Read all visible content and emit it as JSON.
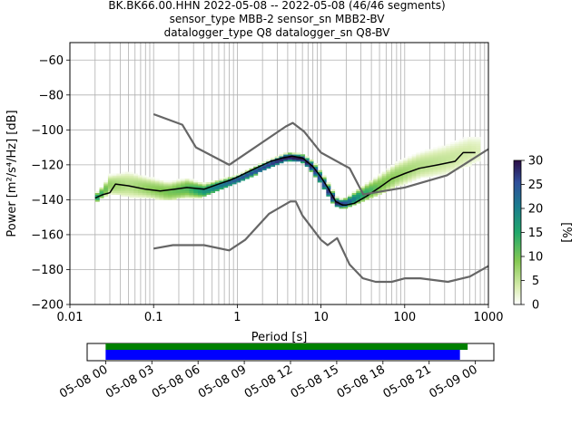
{
  "title": {
    "line1": "BK.BK66.00.HHN   2022-05-08 -- 2022-05-08  (46/46 segments)",
    "line2": "sensor_type MBB-2 sensor_sn MBB2-BV",
    "line3": "datalogger_type Q8 datalogger_sn Q8-BV"
  },
  "colors": {
    "model_curve": "#666666",
    "mode_line": "#000000",
    "grid": "#b0b0b0",
    "coverage_data": "#008000",
    "coverage_gaps": "#0000ff"
  },
  "chart_data": [
    {
      "type": "heatmap",
      "name": "ppsd",
      "xlabel": "Period [s]",
      "ylabel": "Power [m²/s⁴/Hz] [dB]",
      "xscale": "log",
      "xlim": [
        0.01,
        1000
      ],
      "ylim": [
        -200,
        -50
      ],
      "x_ticks": [
        {
          "v": 0.01,
          "label": "0.01"
        },
        {
          "v": 0.1,
          "label": "0.1"
        },
        {
          "v": 1,
          "label": "1"
        },
        {
          "v": 10,
          "label": "10"
        },
        {
          "v": 100,
          "label": "100"
        },
        {
          "v": 1000,
          "label": "1000"
        }
      ],
      "y_ticks": [
        -60,
        -80,
        -100,
        -120,
        -140,
        -160,
        -180,
        -200
      ],
      "grid": true,
      "colorbar": {
        "label": "[%]",
        "range": [
          0,
          30
        ],
        "ticks": [
          0,
          5,
          10,
          15,
          20,
          25,
          30
        ]
      },
      "density_band": [
        {
          "period": 0.02,
          "low": -142,
          "high": -137,
          "max_pct": 18
        },
        {
          "period": 0.025,
          "low": -139,
          "high": -132,
          "max_pct": 12
        },
        {
          "period": 0.03,
          "low": -137,
          "high": -126,
          "max_pct": 8
        },
        {
          "period": 0.05,
          "low": -139,
          "high": -124,
          "max_pct": 6
        },
        {
          "period": 0.08,
          "low": -139,
          "high": -127,
          "max_pct": 8
        },
        {
          "period": 0.15,
          "low": -141,
          "high": -130,
          "max_pct": 10
        },
        {
          "period": 0.25,
          "low": -139,
          "high": -128,
          "max_pct": 12
        },
        {
          "period": 0.4,
          "low": -139,
          "high": -131,
          "max_pct": 18
        },
        {
          "period": 0.7,
          "low": -134,
          "high": -128,
          "max_pct": 22
        },
        {
          "period": 1.0,
          "low": -131,
          "high": -126,
          "max_pct": 25
        },
        {
          "period": 1.5,
          "low": -127,
          "high": -122,
          "max_pct": 25
        },
        {
          "period": 2.5,
          "low": -122,
          "high": -117,
          "max_pct": 27
        },
        {
          "period": 4.0,
          "low": -118,
          "high": -113,
          "max_pct": 30
        },
        {
          "period": 6.0,
          "low": -119,
          "high": -114,
          "max_pct": 30
        },
        {
          "period": 8.0,
          "low": -125,
          "high": -118,
          "max_pct": 28
        },
        {
          "period": 10.0,
          "low": -132,
          "high": -124,
          "max_pct": 25
        },
        {
          "period": 13.0,
          "low": -141,
          "high": -133,
          "max_pct": 28
        },
        {
          "period": 16.0,
          "low": -145,
          "high": -140,
          "max_pct": 30
        },
        {
          "period": 20.0,
          "low": -145,
          "high": -139,
          "max_pct": 25
        },
        {
          "period": 30.0,
          "low": -142,
          "high": -133,
          "max_pct": 16
        },
        {
          "period": 50.0,
          "low": -138,
          "high": -126,
          "max_pct": 10
        },
        {
          "period": 80.0,
          "low": -133,
          "high": -119,
          "max_pct": 8
        },
        {
          "period": 150.0,
          "low": -128,
          "high": -113,
          "max_pct": 6
        },
        {
          "period": 300.0,
          "low": -126,
          "high": -109,
          "max_pct": 5
        },
        {
          "period": 600.0,
          "low": -121,
          "high": -104,
          "max_pct": 4
        },
        {
          "period": 800.0,
          "low": -118,
          "high": -104,
          "max_pct": 3
        }
      ],
      "series": [
        {
          "name": "",
          "role": "mode",
          "x": [
            0.02,
            0.025,
            0.03,
            0.035,
            0.05,
            0.08,
            0.12,
            0.18,
            0.25,
            0.4,
            0.6,
            0.8,
            1.0,
            1.5,
            2.5,
            3.5,
            4.5,
            6.0,
            8.0,
            10.0,
            12.0,
            15.0,
            18.0,
            20.0,
            25.0,
            35.0,
            50.0,
            70.0,
            100.0,
            150.0,
            250.0,
            400.0,
            500.0,
            700.0
          ],
          "y": [
            -139,
            -137,
            -136,
            -131,
            -132,
            -134,
            -135,
            -134,
            -133,
            -134,
            -131,
            -129,
            -127,
            -123,
            -118,
            -116,
            -115,
            -116,
            -121,
            -127,
            -133,
            -141,
            -143,
            -143,
            -142,
            -138,
            -133,
            -128,
            -125,
            -122,
            -120,
            -118,
            -113,
            -113
          ]
        },
        {
          "name": "",
          "role": "model",
          "x": [
            0.1,
            0.22,
            0.32,
            0.8,
            3.8,
            4.6,
            6.3,
            10.0,
            22.0,
            32.0,
            100.0,
            320.0,
            1000.0
          ],
          "y": [
            -91,
            -97,
            -110,
            -120,
            -98,
            -96,
            -101,
            -113,
            -122,
            -137,
            -133,
            -126,
            -111
          ]
        },
        {
          "name": "",
          "role": "model",
          "x": [
            0.1,
            0.17,
            0.4,
            0.8,
            1.24,
            2.4,
            4.3,
            5.0,
            6.0,
            10.0,
            12.0,
            15.6,
            21.9,
            31.6,
            45.0,
            70.0,
            101.0,
            154.0,
            328.0,
            600.0,
            1000.0
          ],
          "y": [
            -168,
            -166,
            -166,
            -169,
            -163,
            -148,
            -141,
            -141,
            -149,
            -163,
            -166,
            -162,
            -177,
            -185,
            -187,
            -187,
            -185,
            -185,
            -187,
            -184,
            -178
          ]
        }
      ]
    },
    {
      "type": "bar",
      "name": "data coverage",
      "x_labels": [
        "05-08 00",
        "05-08 03",
        "05-08 06",
        "05-08 09",
        "05-08 12",
        "05-08 15",
        "05-08 18",
        "05-08 21",
        "05-09 00"
      ],
      "x_hours": [
        0,
        3,
        6,
        9,
        12,
        15,
        18,
        21,
        24
      ],
      "xlim_hours": [
        -1.2,
        25.2
      ],
      "series": [
        {
          "name": "",
          "role": "data",
          "start_hour": 0,
          "end_hour": 23.5
        },
        {
          "name": "",
          "role": "gaps",
          "start_hour": 0,
          "end_hour": 23.0
        }
      ]
    }
  ]
}
